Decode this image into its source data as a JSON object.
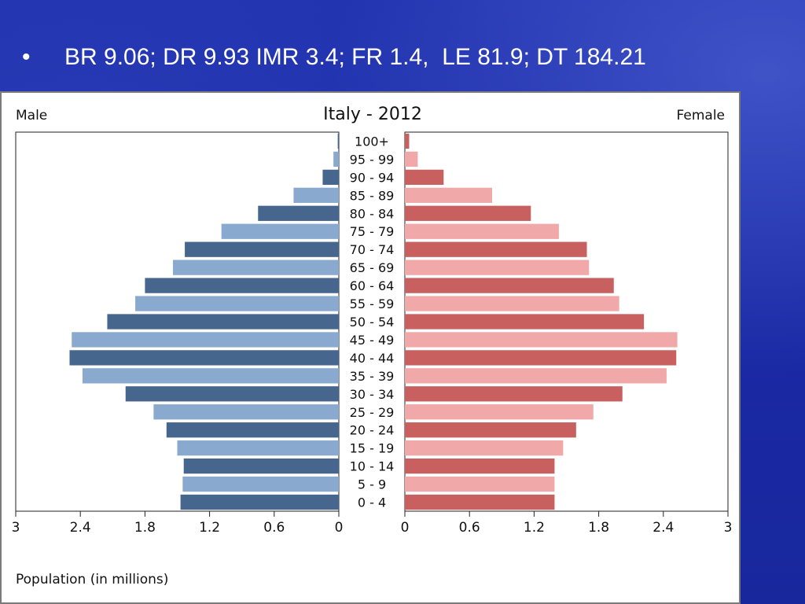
{
  "slide": {
    "bullet": "•",
    "text": "BR 9.06; DR 9.93 IMR 3.4; FR 1.4,  LE 81.9; DT 184.21"
  },
  "colors": {
    "male_dark": "#46668e",
    "male_light": "#8aa9cf",
    "female_dark": "#c96060",
    "female_light": "#f0a8a8"
  },
  "chart_data": {
    "type": "bar",
    "title": "Italy - 2012",
    "left_label": "Male",
    "right_label": "Female",
    "xlabel": "Population (in millions)",
    "categories": [
      "100+",
      "95 - 99",
      "90 - 94",
      "85 - 89",
      "80 - 84",
      "75 - 79",
      "70 - 74",
      "65 - 69",
      "60 - 64",
      "55 - 59",
      "50 - 54",
      "45 - 49",
      "40 - 44",
      "35 - 39",
      "30 - 34",
      "25 - 29",
      "20 - 24",
      "15 - 19",
      "10 - 14",
      "5 - 9",
      "0 - 4"
    ],
    "series": [
      {
        "name": "Male",
        "values": [
          0.01,
          0.05,
          0.15,
          0.42,
          0.75,
          1.09,
          1.43,
          1.54,
          1.8,
          1.89,
          2.15,
          2.48,
          2.5,
          2.38,
          1.98,
          1.72,
          1.6,
          1.5,
          1.44,
          1.45,
          1.47
        ]
      },
      {
        "name": "Female",
        "values": [
          0.04,
          0.12,
          0.36,
          0.81,
          1.17,
          1.43,
          1.69,
          1.71,
          1.94,
          1.99,
          2.22,
          2.53,
          2.52,
          2.43,
          2.02,
          1.75,
          1.59,
          1.47,
          1.39,
          1.39,
          1.39
        ]
      }
    ],
    "xlim": [
      0,
      3
    ],
    "ticks": [
      "3",
      "2.4",
      "1.8",
      "1.2",
      "0.6",
      "0",
      "0",
      "0.6",
      "1.2",
      "1.8",
      "2.4",
      "3"
    ],
    "grid": false,
    "legend": "none"
  }
}
